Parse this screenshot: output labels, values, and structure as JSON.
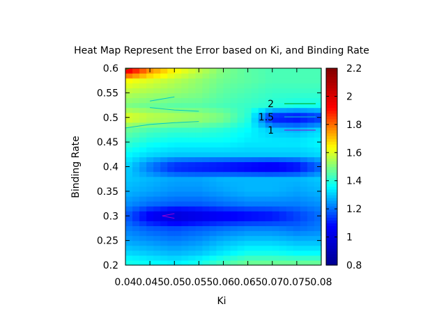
{
  "chart_data": {
    "type": "heatmap",
    "title": "Heat Map Represent the Error based on Ki, and Binding Rate",
    "xlabel": "Ki",
    "ylabel": "Binding Rate",
    "xlim": [
      0.04,
      0.08
    ],
    "ylim": [
      0.2,
      0.6
    ],
    "x_tick_labels": [
      "0.04",
      "0.045",
      "0.05",
      "0.055",
      "0.06",
      "0.065",
      "0.07",
      "0.075",
      "0.08"
    ],
    "y_tick_labels": [
      "0.2",
      "0.25",
      "0.3",
      "0.35",
      "0.4",
      "0.45",
      "0.5",
      "0.55",
      "0.6"
    ],
    "x": [
      0.04,
      0.045,
      0.05,
      0.055,
      0.06,
      0.065,
      0.07,
      0.075,
      0.08
    ],
    "y": [
      0.2,
      0.225,
      0.25,
      0.275,
      0.3,
      0.325,
      0.35,
      0.375,
      0.4,
      0.425,
      0.45,
      0.475,
      0.5,
      0.525,
      0.55,
      0.575,
      0.6
    ],
    "z": [
      [
        1.4,
        1.38,
        1.36,
        1.4,
        1.46,
        1.5,
        1.5,
        1.5,
        1.5
      ],
      [
        1.32,
        1.3,
        1.28,
        1.3,
        1.34,
        1.38,
        1.38,
        1.36,
        1.36
      ],
      [
        1.26,
        1.24,
        1.22,
        1.24,
        1.28,
        1.3,
        1.3,
        1.28,
        1.28
      ],
      [
        1.22,
        1.18,
        1.16,
        1.18,
        1.2,
        1.22,
        1.22,
        1.2,
        1.22
      ],
      [
        1.18,
        1.04,
        0.96,
        1.0,
        1.04,
        1.06,
        1.08,
        1.14,
        1.2
      ],
      [
        1.24,
        1.2,
        1.18,
        1.18,
        1.2,
        1.22,
        1.22,
        1.22,
        1.24
      ],
      [
        1.28,
        1.26,
        1.24,
        1.24,
        1.26,
        1.28,
        1.28,
        1.26,
        1.28
      ],
      [
        1.3,
        1.28,
        1.26,
        1.26,
        1.28,
        1.28,
        1.28,
        1.28,
        1.3
      ],
      [
        1.32,
        1.2,
        1.1,
        1.08,
        1.06,
        1.04,
        1.02,
        1.06,
        1.18
      ],
      [
        1.36,
        1.32,
        1.3,
        1.3,
        1.3,
        1.3,
        1.3,
        1.3,
        1.32
      ],
      [
        1.42,
        1.38,
        1.36,
        1.36,
        1.36,
        1.34,
        1.34,
        1.34,
        1.36
      ],
      [
        1.48,
        1.44,
        1.42,
        1.42,
        1.4,
        1.36,
        1.3,
        1.28,
        1.32
      ],
      [
        1.62,
        1.58,
        1.56,
        1.54,
        1.5,
        1.4,
        1.08,
        1.06,
        1.12
      ],
      [
        1.5,
        1.48,
        1.46,
        1.46,
        1.44,
        1.42,
        1.4,
        1.38,
        1.38
      ],
      [
        1.56,
        1.54,
        1.52,
        1.5,
        1.46,
        1.44,
        1.42,
        1.42,
        1.42
      ],
      [
        1.64,
        1.6,
        1.56,
        1.52,
        1.48,
        1.46,
        1.44,
        1.44,
        1.44
      ],
      [
        2.04,
        1.8,
        1.66,
        1.58,
        1.5,
        1.46,
        1.44,
        1.44,
        1.44
      ]
    ],
    "zlim": [
      0.8,
      2.2
    ],
    "colorbar_tick_labels": [
      "0.8",
      "1",
      "1.2",
      "1.4",
      "1.6",
      "1.8",
      "2",
      "2.2"
    ],
    "colormap": [
      "#00008f",
      "#0000ff",
      "#00ffff",
      "#ffff00",
      "#ff0000",
      "#800000"
    ],
    "contour_levels": [
      {
        "label": "2",
        "color": "#00a000"
      },
      {
        "label": "1.5",
        "color": "#00c8c8"
      },
      {
        "label": "1",
        "color": "#9400d3"
      }
    ],
    "grid": false,
    "legend": "top-right"
  }
}
